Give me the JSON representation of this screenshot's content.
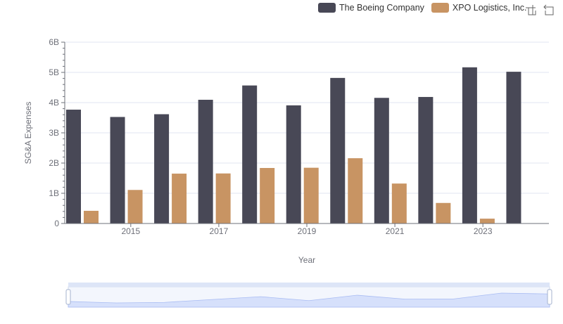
{
  "chart_data": {
    "type": "bar",
    "title": "",
    "xlabel": "Year",
    "ylabel": "SG&A Expenses",
    "categories": [
      "2014",
      "2015",
      "2016",
      "2017",
      "2018",
      "2019",
      "2020",
      "2021",
      "2022",
      "2023",
      "2024"
    ],
    "x_tick_labels": [
      "2015",
      "2017",
      "2019",
      "2021",
      "2023"
    ],
    "y_tick_labels": [
      "0",
      "1B",
      "2B",
      "3B",
      "4B",
      "5B",
      "6B"
    ],
    "ylim": [
      0,
      6000000000
    ],
    "grid": true,
    "legend_position": "top-right",
    "series": [
      {
        "name": "The Boeing Company",
        "color": "#484856",
        "values": [
          3767000000,
          3525000000,
          3616000000,
          4094000000,
          4567000000,
          3909000000,
          4817000000,
          4157000000,
          4187000000,
          5168000000,
          5021000000
        ]
      },
      {
        "name": "XPO Logistics, Inc.",
        "color": "#c89463",
        "values": [
          420000000,
          1110000000,
          1650000000,
          1656000000,
          1837000000,
          1845000000,
          2160000000,
          1322000000,
          680000000,
          160000000,
          null
        ]
      }
    ]
  },
  "toolbox": {
    "zoom_icon": "zoom-icon",
    "restore_icon": "restore-icon"
  },
  "colors": {
    "axis": "#6e7079",
    "grid": "#e0e6f1",
    "slider_fill": "#d6e0fb",
    "slider_border": "#d2dbee"
  }
}
